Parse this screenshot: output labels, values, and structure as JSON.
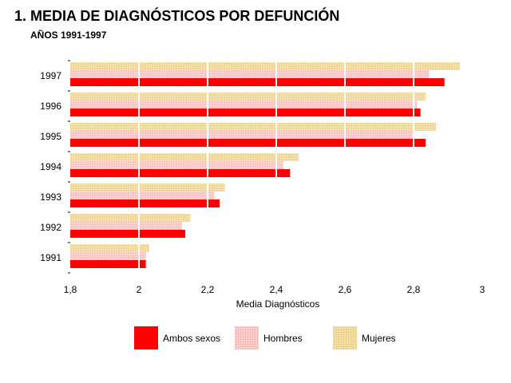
{
  "title": "1. MEDIA DE DIAGNÓSTICOS POR DEFUNCIÓN",
  "subtitle": "AÑOS 1991-1997",
  "chart_data": {
    "type": "bar",
    "orientation": "horizontal",
    "categories": [
      "1991",
      "1992",
      "1993",
      "1994",
      "1995",
      "1996",
      "1997"
    ],
    "series": [
      {
        "name": "Ambos sexos",
        "color": "#ff0000",
        "values": [
          2.02,
          2.135,
          2.235,
          2.44,
          2.835,
          2.82,
          2.89
        ]
      },
      {
        "name": "Hombres",
        "color": "#ffcccc",
        "values": [
          2.02,
          2.125,
          2.22,
          2.42,
          2.8,
          2.81,
          2.845
        ]
      },
      {
        "name": "Mujeres",
        "color": "#f0d898",
        "values": [
          2.03,
          2.15,
          2.25,
          2.465,
          2.865,
          2.835,
          2.935
        ]
      }
    ],
    "xlabel": "Media Diagnósticos",
    "xlim": [
      1.8,
      3.0
    ],
    "xticks": [
      "1,8",
      "2",
      "2,2",
      "2,4",
      "2,6",
      "2,8",
      "3"
    ],
    "xtick_values": [
      1.8,
      2.0,
      2.2,
      2.4,
      2.6,
      2.8,
      3.0
    ],
    "grid": "vertical white lines",
    "legend_position": "bottom"
  }
}
